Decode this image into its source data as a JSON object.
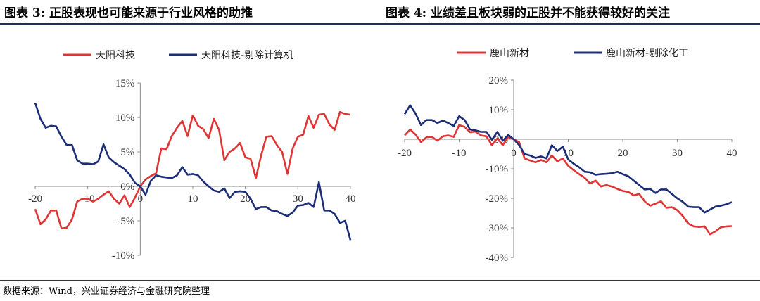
{
  "titles": {
    "left": "图表 3:  正股表现也可能来源于行业风格的助推",
    "right": "图表 4:  业绩差且板块弱的正股并不能获得较好的关注"
  },
  "source": "数据来源：Wind，兴业证券经济与金融研究院整理",
  "chart_data": [
    {
      "type": "line",
      "xlim": [
        -20,
        40
      ],
      "ylim": [
        -0.1,
        0.15
      ],
      "x_ticks": [
        -20,
        -10,
        0,
        10,
        20,
        30,
        40
      ],
      "y_ticks": [
        -0.1,
        -0.05,
        0,
        0.05,
        0.1,
        0.15
      ],
      "y_tick_labels": [
        "-10%",
        "-5%",
        "0%",
        "5%",
        "10%",
        "15%"
      ],
      "x_tick_labels": [
        "-20",
        "-10",
        "0",
        "10",
        "20",
        "30",
        "40"
      ],
      "legend_position": "top",
      "x": [
        -20,
        -19,
        -18,
        -17,
        -16,
        -15,
        -14,
        -13,
        -12,
        -11,
        -10,
        -9,
        -8,
        -7,
        -6,
        -5,
        -4,
        -3,
        -2,
        -1,
        0,
        1,
        2,
        3,
        4,
        5,
        6,
        7,
        8,
        9,
        10,
        11,
        12,
        13,
        14,
        15,
        16,
        17,
        18,
        19,
        20,
        21,
        22,
        23,
        24,
        25,
        26,
        27,
        28,
        29,
        30,
        31,
        32,
        33,
        34,
        35,
        36,
        37,
        38,
        39,
        40
      ],
      "series": [
        {
          "name": "天阳科技",
          "color": "#e03535",
          "values": [
            -0.033,
            -0.055,
            -0.048,
            -0.035,
            -0.035,
            -0.061,
            -0.06,
            -0.048,
            -0.022,
            -0.018,
            -0.018,
            -0.022,
            -0.018,
            -0.012,
            -0.007,
            -0.018,
            -0.025,
            -0.013,
            -0.03,
            -0.016,
            0.0,
            0.01,
            0.015,
            0.019,
            0.055,
            0.054,
            0.073,
            0.085,
            0.095,
            0.073,
            0.103,
            0.088,
            0.083,
            0.07,
            0.098,
            0.082,
            0.038,
            0.05,
            0.055,
            0.063,
            0.042,
            0.04,
            0.012,
            0.045,
            0.072,
            0.073,
            0.06,
            0.05,
            0.018,
            0.055,
            0.072,
            0.075,
            0.102,
            0.085,
            0.104,
            0.105,
            0.09,
            0.082,
            0.108,
            0.105,
            0.104
          ]
        },
        {
          "name": "天阳科技-剔除计算机",
          "color": "#1c2e78",
          "values": [
            0.121,
            0.098,
            0.085,
            0.088,
            0.087,
            0.072,
            0.06,
            0.06,
            0.038,
            0.033,
            0.033,
            0.032,
            0.036,
            0.061,
            0.042,
            0.035,
            0.03,
            0.025,
            0.017,
            0.005,
            0.0,
            -0.012,
            0.008,
            0.016,
            0.014,
            0.013,
            0.012,
            0.016,
            0.028,
            0.017,
            0.018,
            0.016,
            0.007,
            0.0,
            -0.006,
            -0.008,
            -0.003,
            -0.017,
            -0.008,
            -0.007,
            -0.008,
            -0.018,
            -0.033,
            -0.03,
            -0.03,
            -0.035,
            -0.036,
            -0.04,
            -0.043,
            -0.038,
            -0.028,
            -0.027,
            -0.024,
            -0.03,
            0.006,
            -0.035,
            -0.035,
            -0.04,
            -0.053,
            -0.05,
            -0.078
          ]
        }
      ]
    },
    {
      "type": "line",
      "xlim": [
        -20,
        40
      ],
      "ylim": [
        -0.4,
        0.2
      ],
      "x_ticks": [
        -20,
        -10,
        0,
        10,
        20,
        30,
        40
      ],
      "y_ticks": [
        -0.4,
        -0.3,
        -0.2,
        -0.1,
        0,
        0.1,
        0.2
      ],
      "y_tick_labels": [
        "-40%",
        "-30%",
        "-20%",
        "-10%",
        "0%",
        "10%",
        "20%"
      ],
      "x_tick_labels": [
        "-20",
        "-10",
        "0",
        "10",
        "20",
        "30",
        "40"
      ],
      "legend_position": "top",
      "x": [
        -20,
        -19,
        -18,
        -17,
        -16,
        -15,
        -14,
        -13,
        -12,
        -11,
        -10,
        -9,
        -8,
        -7,
        -6,
        -5,
        -4,
        -3,
        -2,
        -1,
        0,
        1,
        2,
        3,
        4,
        5,
        6,
        7,
        8,
        9,
        10,
        11,
        12,
        13,
        14,
        15,
        16,
        17,
        18,
        19,
        20,
        21,
        22,
        23,
        24,
        25,
        26,
        27,
        28,
        29,
        30,
        31,
        32,
        33,
        34,
        35,
        36,
        37,
        38,
        39,
        40
      ],
      "series": [
        {
          "name": "鹿山新材",
          "color": "#e03535",
          "values": [
            0.013,
            0.033,
            0.016,
            -0.01,
            0.007,
            0.008,
            -0.005,
            0.01,
            0.013,
            0.008,
            0.048,
            0.042,
            0.024,
            0.026,
            0.013,
            0.01,
            -0.02,
            0.003,
            -0.02,
            0.008,
            0.0,
            -0.01,
            -0.065,
            -0.072,
            -0.078,
            -0.07,
            -0.078,
            -0.055,
            -0.075,
            -0.065,
            -0.09,
            -0.105,
            -0.118,
            -0.13,
            -0.15,
            -0.14,
            -0.16,
            -0.155,
            -0.16,
            -0.168,
            -0.175,
            -0.178,
            -0.19,
            -0.185,
            -0.21,
            -0.225,
            -0.218,
            -0.21,
            -0.232,
            -0.23,
            -0.24,
            -0.26,
            -0.285,
            -0.295,
            -0.297,
            -0.295,
            -0.322,
            -0.312,
            -0.298,
            -0.295,
            -0.294
          ]
        },
        {
          "name": "鹿山新材-剔除化工",
          "color": "#1c2e78",
          "values": [
            0.085,
            0.115,
            0.087,
            0.048,
            0.065,
            0.065,
            0.055,
            0.063,
            0.055,
            0.045,
            0.078,
            0.065,
            0.033,
            0.03,
            0.025,
            0.025,
            -0.002,
            0.025,
            -0.005,
            0.015,
            0.0,
            -0.02,
            -0.05,
            -0.055,
            -0.063,
            -0.058,
            -0.065,
            -0.02,
            -0.04,
            -0.025,
            -0.068,
            -0.083,
            -0.095,
            -0.11,
            -0.112,
            -0.12,
            -0.118,
            -0.117,
            -0.115,
            -0.11,
            -0.118,
            -0.125,
            -0.14,
            -0.155,
            -0.17,
            -0.168,
            -0.182,
            -0.17,
            -0.17,
            -0.185,
            -0.2,
            -0.212,
            -0.228,
            -0.23,
            -0.23,
            -0.248,
            -0.238,
            -0.228,
            -0.225,
            -0.22,
            -0.213
          ]
        }
      ]
    }
  ]
}
